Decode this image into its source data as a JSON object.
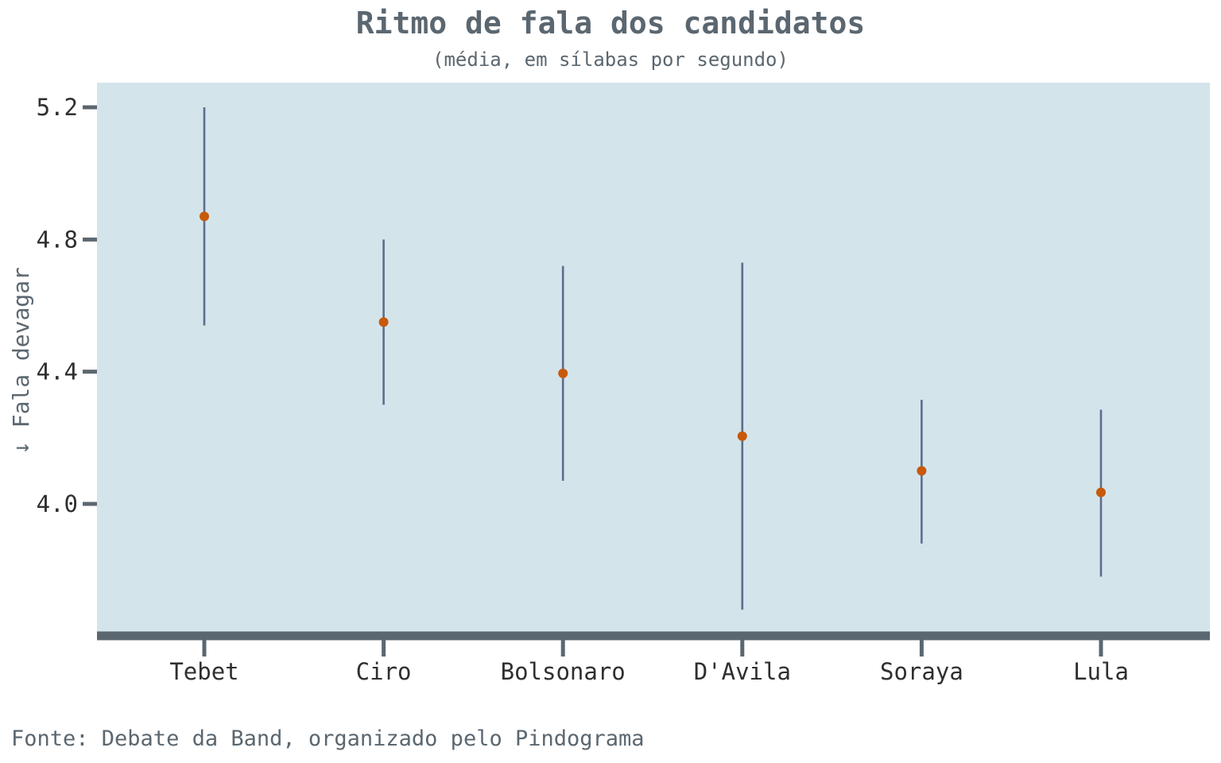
{
  "chart_data": {
    "type": "scatter",
    "title": "Ritmo de fala dos candidatos",
    "subtitle": "(média, em sílabas por segundo)",
    "ylabel": "↓ Fala devagar",
    "xlabel": "",
    "source": "Fonte: Debate da Band, organizado pelo Pindograma",
    "categories": [
      "Tebet",
      "Ciro",
      "Bolsonaro",
      "D'Avila",
      "Soraya",
      "Lula"
    ],
    "values": [
      4.87,
      4.55,
      4.395,
      4.205,
      4.1,
      4.035
    ],
    "intervals": [
      [
        4.54,
        5.2
      ],
      [
        4.3,
        4.8
      ],
      [
        4.07,
        4.72
      ],
      [
        3.68,
        4.73
      ],
      [
        3.88,
        4.315
      ],
      [
        3.78,
        4.285
      ]
    ],
    "yticks": [
      "4.0",
      "4.4",
      "4.8",
      "5.2"
    ],
    "ylim": [
      3.6,
      5.27
    ],
    "grid": false,
    "colors": {
      "point": "#c8590a",
      "interval": "#5a6e8e",
      "panel": "#d4e4eb",
      "axis": "#5b6770"
    }
  }
}
